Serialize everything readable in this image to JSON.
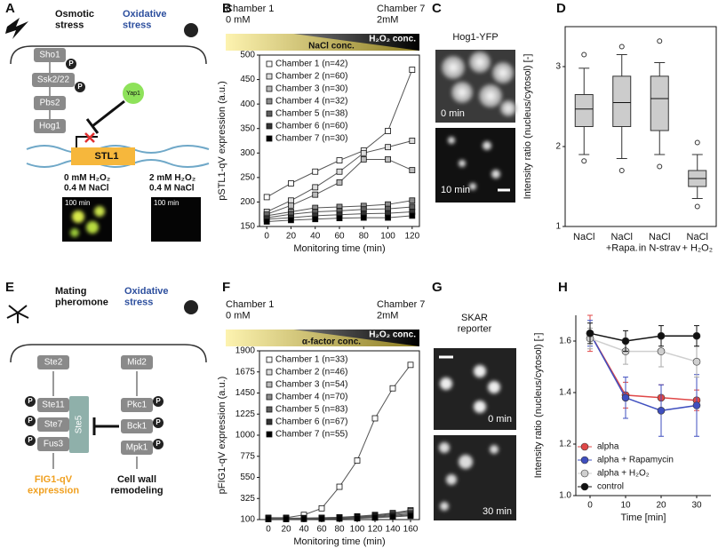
{
  "panel_labels": [
    "A",
    "B",
    "C",
    "D",
    "E",
    "F",
    "G",
    "H"
  ],
  "panel_a": {
    "stress_1": "Osmotic\nstress",
    "stress_2": "Oxidative\nstress",
    "proteins": [
      "Sho1",
      "Ssk2/22",
      "Pbs2",
      "Hog1"
    ],
    "yap": "Yap1",
    "gene": "STL1",
    "phospho": "P",
    "condition_1": "0 mM H₂O₂\n0.4 M NaCl",
    "condition_2": "2 mM H₂O₂\n0.4 M NaCl",
    "time_1": "100 min",
    "time_2": "100 min"
  },
  "panel_c": {
    "title": "Hog1-YFP",
    "time_1": "0 min",
    "time_2": "10 min"
  },
  "panel_e": {
    "stress_1": "Mating\npheromone",
    "stress_2": "Oxidative\nstress",
    "receptors": [
      "Ste2",
      "Mid2"
    ],
    "pheromone_pathway": [
      "Ste11",
      "Ste7",
      "Fus3"
    ],
    "scaffold": "Ste5",
    "cell_wall_pathway": [
      "Pkc1",
      "Bck1",
      "Mpk1"
    ],
    "phospho": "P",
    "output_1": "FIG1-qV\nexpression",
    "output_2": "Cell wall\nremodeling"
  },
  "panel_g": {
    "title": "SKAR\nreporter",
    "time_1": "0 min",
    "time_2": "30 min"
  },
  "chart_data": [
    {
      "type": "line",
      "x_label": "Monitoring time (min)",
      "y_label": "pSTL1-qV expression (a.u.)",
      "header": {
        "left": "Chamber 1\n0 mM",
        "right": "Chamber 7\n2mM",
        "gradient_1": "NaCl conc.",
        "gradient_2": "H₂O₂ conc."
      },
      "x": [
        0,
        20,
        40,
        60,
        80,
        100,
        120
      ],
      "xlim": [
        -6,
        126
      ],
      "xticks": [
        0,
        20,
        40,
        60,
        80,
        100,
        120
      ],
      "ylim": [
        150,
        500
      ],
      "yticks": [
        150,
        200,
        250,
        300,
        350,
        400,
        450,
        500
      ],
      "marker": "square",
      "line_color": "#555",
      "frame": true,
      "legend": "upper left",
      "series": [
        {
          "name": "Chamber 1 (n=42)",
          "color": "#ffffff",
          "values": [
            210,
            238,
            262,
            285,
            305,
            345,
            470
          ]
        },
        {
          "name": "Chamber 2 (n=60)",
          "color": "#dddddd",
          "values": [
            180,
            203,
            230,
            262,
            300,
            312,
            325
          ]
        },
        {
          "name": "Chamber 3 (n=30)",
          "color": "#bbbbbb",
          "values": [
            175,
            193,
            215,
            240,
            287,
            287,
            265
          ]
        },
        {
          "name": "Chamber 4 (n=32)",
          "color": "#8c8c8c",
          "values": [
            172,
            180,
            188,
            190,
            192,
            195,
            203
          ]
        },
        {
          "name": "Chamber 5 (n=38)",
          "color": "#5e5e5e",
          "values": [
            168,
            175,
            180,
            182,
            185,
            186,
            190
          ]
        },
        {
          "name": "Chamber 6 (n=60)",
          "color": "#333333",
          "values": [
            165,
            168,
            172,
            174,
            176,
            177,
            180
          ]
        },
        {
          "name": "Chamber 7 (n=30)",
          "color": "#000000",
          "values": [
            160,
            163,
            165,
            167,
            168,
            168,
            172
          ]
        }
      ]
    },
    {
      "type": "box",
      "y_label": "Intensity ratio (nucleus/cytosol) [-]",
      "categories": [
        "NaCl",
        "NaCl\n+Rapa.",
        "NaCl\nin N-strav",
        "NaCl\n+ H₂O₂"
      ],
      "ylim": [
        1,
        3.5
      ],
      "yticks": [
        1,
        2,
        3
      ],
      "color": "#cccccc",
      "frame": true,
      "boxes": [
        {
          "whislo": 1.9,
          "q1": 2.25,
          "med": 2.47,
          "q3": 2.65,
          "whishi": 2.98,
          "fliers": [
            1.82,
            3.15
          ]
        },
        {
          "whislo": 1.85,
          "q1": 2.25,
          "med": 2.55,
          "q3": 2.88,
          "whishi": 3.15,
          "fliers": [
            1.7,
            3.25
          ]
        },
        {
          "whislo": 1.9,
          "q1": 2.2,
          "med": 2.6,
          "q3": 2.88,
          "whishi": 3.05,
          "fliers": [
            1.75,
            3.32
          ]
        },
        {
          "whislo": 1.35,
          "q1": 1.5,
          "med": 1.6,
          "q3": 1.7,
          "whishi": 1.9,
          "fliers": [
            1.25,
            2.05
          ]
        }
      ]
    },
    {
      "type": "line",
      "x_label": "Monitoring time (min)",
      "y_label": "pFIG1-qV expression (a.u.)",
      "header": {
        "left": "Chamber 1\n0 mM",
        "right": "Chamber 7\n2mM",
        "gradient_1": "α-factor conc.",
        "gradient_2": "H₂O₂ conc."
      },
      "x": [
        0,
        20,
        40,
        60,
        80,
        100,
        120,
        140,
        160
      ],
      "xlim": [
        -10,
        170
      ],
      "xticks": [
        0,
        20,
        40,
        60,
        80,
        100,
        120,
        140,
        160
      ],
      "ylim": [
        100,
        1900
      ],
      "yticks": [
        100,
        325,
        550,
        775,
        1000,
        1225,
        1450,
        1675,
        1900
      ],
      "marker": "square",
      "line_color": "#555",
      "frame": true,
      "legend": "upper left",
      "series": [
        {
          "name": "Chamber 1 (n=33)",
          "color": "#ffffff",
          "values": [
            120,
            120,
            150,
            220,
            450,
            730,
            1180,
            1500,
            1750
          ]
        },
        {
          "name": "Chamber 2 (n=46)",
          "color": "#dddddd",
          "values": [
            115,
            115,
            117,
            120,
            125,
            135,
            150,
            170,
            200
          ]
        },
        {
          "name": "Chamber 3 (n=54)",
          "color": "#bbbbbb",
          "values": [
            112,
            112,
            114,
            118,
            122,
            130,
            145,
            165,
            190
          ]
        },
        {
          "name": "Chamber 4 (n=70)",
          "color": "#8c8c8c",
          "values": [
            110,
            110,
            112,
            115,
            118,
            125,
            138,
            155,
            175
          ]
        },
        {
          "name": "Chamber 5 (n=83)",
          "color": "#5e5e5e",
          "values": [
            108,
            108,
            110,
            112,
            115,
            120,
            130,
            145,
            160
          ]
        },
        {
          "name": "Chamber 6 (n=67)",
          "color": "#333333",
          "values": [
            106,
            106,
            108,
            110,
            112,
            116,
            124,
            135,
            150
          ]
        },
        {
          "name": "Chamber 7 (n=55)",
          "color": "#000000",
          "values": [
            105,
            105,
            106,
            108,
            110,
            113,
            120,
            128,
            140
          ]
        }
      ]
    },
    {
      "type": "line",
      "x_label": "Time [min]",
      "y_label": "Intensity ratio (nucleus/cytosol) [-]",
      "x": [
        0,
        10,
        20,
        30
      ],
      "xlim": [
        -4,
        34
      ],
      "xticks": [
        0,
        10,
        20,
        30
      ],
      "ylim": [
        1,
        1.7
      ],
      "yticks": [
        {
          "value": 1,
          "label": "1.0"
        },
        1.2,
        1.4,
        1.6
      ],
      "marker": "circle",
      "frame": false,
      "legend": "lower left",
      "series": [
        {
          "name": "alpha",
          "color": "#e04848",
          "values": [
            1.63,
            1.39,
            1.38,
            1.37
          ],
          "errors": [
            0.07,
            0.05,
            0.05,
            0.04
          ]
        },
        {
          "name": "alpha + Rapamycin",
          "color": "#3f4fbf",
          "values": [
            1.63,
            1.38,
            1.33,
            1.35
          ],
          "errors": [
            0.05,
            0.08,
            0.1,
            0.12
          ]
        },
        {
          "name": "alpha + H₂O₂",
          "color": "#cfcfcf",
          "values": [
            1.61,
            1.56,
            1.56,
            1.52
          ],
          "errors": [
            0.04,
            0.05,
            0.06,
            0.06
          ]
        },
        {
          "name": "control",
          "color": "#111111",
          "values": [
            1.63,
            1.6,
            1.62,
            1.62
          ],
          "errors": [
            0.04,
            0.04,
            0.04,
            0.04
          ]
        }
      ]
    }
  ]
}
